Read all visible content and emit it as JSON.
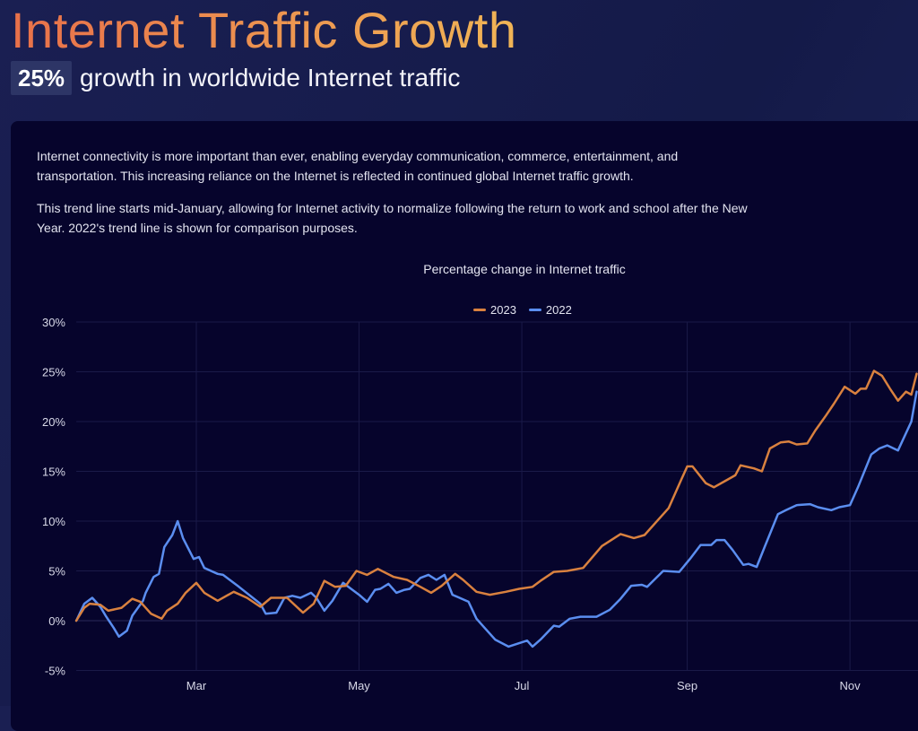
{
  "header": {
    "title": "Internet Traffic Growth",
    "badge": "25%",
    "subtitle": "growth in worldwide Internet traffic"
  },
  "body": {
    "paragraph1": "Internet connectivity is more important than ever, enabling everyday communication, commerce, entertainment, and transportation. This increasing reliance on the Internet is reflected in continued global Internet traffic growth.",
    "paragraph2": "This trend line starts mid-January, allowing for Internet activity to normalize following the return to work and school after the New Year. 2022's trend line is shown for comparison purposes."
  },
  "colors": {
    "2023": "#d9813f",
    "2022": "#5b8ef0",
    "title_start": "#e8704a",
    "title_end": "#f0b556"
  },
  "chart_data": {
    "type": "line",
    "title": "Percentage change in Internet traffic",
    "legend_position": "top-center",
    "grid": true,
    "xlabel": "",
    "ylabel": "",
    "ylim": [
      -5,
      30
    ],
    "y_ticks": [
      "-5%",
      "0%",
      "5%",
      "10%",
      "15%",
      "20%",
      "25%",
      "30%"
    ],
    "y_tick_values": [
      -5,
      0,
      5,
      10,
      15,
      20,
      25,
      30
    ],
    "x_ticks": [
      "Mar",
      "May",
      "Jul",
      "Sep",
      "Nov"
    ],
    "xlim": [
      "Jan 15",
      "Nov 26"
    ],
    "series": [
      {
        "name": "2023",
        "color": "#d9813f",
        "points": [
          [
            "Jan 15",
            0
          ],
          [
            "Jan 18",
            1.3
          ],
          [
            "Jan 20",
            1.7
          ],
          [
            "Jan 24",
            1.6
          ],
          [
            "Jan 27",
            1.0
          ],
          [
            "Feb 1",
            1.3
          ],
          [
            "Feb 5",
            2.2
          ],
          [
            "Feb 8",
            1.9
          ],
          [
            "Feb 12",
            0.7
          ],
          [
            "Feb 16",
            0.2
          ],
          [
            "Feb 18",
            1.0
          ],
          [
            "Feb 22",
            1.7
          ],
          [
            "Feb 25",
            2.8
          ],
          [
            "Mar 1",
            3.8
          ],
          [
            "Mar 4",
            2.8
          ],
          [
            "Mar 9",
            2.0
          ],
          [
            "Mar 15",
            2.9
          ],
          [
            "Mar 20",
            2.3
          ],
          [
            "Mar 25",
            1.4
          ],
          [
            "Mar 29",
            2.3
          ],
          [
            "Apr 4",
            2.3
          ],
          [
            "Apr 10",
            0.8
          ],
          [
            "Apr 14",
            1.7
          ],
          [
            "Apr 18",
            4.0
          ],
          [
            "Apr 22",
            3.4
          ],
          [
            "Apr 26",
            3.5
          ],
          [
            "Apr 30",
            5.0
          ],
          [
            "May 4",
            4.6
          ],
          [
            "May 8",
            5.2
          ],
          [
            "May 14",
            4.4
          ],
          [
            "May 19",
            4.1
          ],
          [
            "May 24",
            3.4
          ],
          [
            "May 28",
            2.8
          ],
          [
            "Jun 1",
            3.5
          ],
          [
            "Jun 6",
            4.7
          ],
          [
            "Jun 9",
            4.1
          ],
          [
            "Jun 14",
            2.9
          ],
          [
            "Jun 19",
            2.6
          ],
          [
            "Jun 25",
            2.9
          ],
          [
            "Jun 30",
            3.2
          ],
          [
            "Jul 5",
            3.4
          ],
          [
            "Jul 8",
            4.0
          ],
          [
            "Jul 13",
            4.9
          ],
          [
            "Jul 18",
            5.0
          ],
          [
            "Jul 24",
            5.3
          ],
          [
            "Jul 31",
            7.5
          ],
          [
            "Aug 7",
            8.7
          ],
          [
            "Aug 12",
            8.3
          ],
          [
            "Aug 16",
            8.6
          ],
          [
            "Aug 21",
            10.1
          ],
          [
            "Aug 25",
            11.3
          ],
          [
            "Aug 30",
            14.3
          ],
          [
            "Sep 1",
            15.5
          ],
          [
            "Sep 3",
            15.5
          ],
          [
            "Sep 8",
            13.8
          ],
          [
            "Sep 11",
            13.4
          ],
          [
            "Sep 15",
            14.0
          ],
          [
            "Sep 19",
            14.6
          ],
          [
            "Sep 21",
            15.6
          ],
          [
            "Sep 26",
            15.3
          ],
          [
            "Sep 29",
            15.0
          ],
          [
            "Oct 2",
            17.3
          ],
          [
            "Oct 6",
            17.9
          ],
          [
            "Oct 9",
            18.0
          ],
          [
            "Oct 12",
            17.7
          ],
          [
            "Oct 16",
            17.8
          ],
          [
            "Oct 19",
            19.1
          ],
          [
            "Oct 23",
            20.6
          ],
          [
            "Oct 26",
            21.8
          ],
          [
            "Oct 30",
            23.5
          ],
          [
            "Nov 3",
            22.8
          ],
          [
            "Nov 5",
            23.3
          ],
          [
            "Nov 7",
            23.3
          ],
          [
            "Nov 10",
            25.1
          ],
          [
            "Nov 13",
            24.6
          ],
          [
            "Nov 16",
            23.3
          ],
          [
            "Nov 19",
            22.1
          ],
          [
            "Nov 22",
            23.0
          ],
          [
            "Nov 24",
            22.7
          ],
          [
            "Nov 26",
            24.8
          ]
        ]
      },
      {
        "name": "2022",
        "color": "#5b8ef0",
        "points": [
          [
            "Jan 15",
            0
          ],
          [
            "Jan 18",
            1.7
          ],
          [
            "Jan 21",
            2.3
          ],
          [
            "Jan 24",
            1.4
          ],
          [
            "Jan 26",
            0.5
          ],
          [
            "Jan 29",
            -0.7
          ],
          [
            "Jan 31",
            -1.6
          ],
          [
            "Feb 3",
            -1.0
          ],
          [
            "Feb 5",
            0.5
          ],
          [
            "Feb 9",
            2.0
          ],
          [
            "Feb 10",
            2.8
          ],
          [
            "Feb 13",
            4.4
          ],
          [
            "Feb 15",
            4.7
          ],
          [
            "Feb 17",
            7.4
          ],
          [
            "Feb 20",
            8.6
          ],
          [
            "Feb 22",
            10.0
          ],
          [
            "Feb 24",
            8.3
          ],
          [
            "Feb 28",
            6.2
          ],
          [
            "Mar 2",
            6.4
          ],
          [
            "Mar 4",
            5.3
          ],
          [
            "Mar 9",
            4.7
          ],
          [
            "Mar 11",
            4.6
          ],
          [
            "Mar 17",
            3.4
          ],
          [
            "Mar 25",
            1.7
          ],
          [
            "Mar 27",
            0.7
          ],
          [
            "Mar 31",
            0.8
          ],
          [
            "Apr 3",
            2.3
          ],
          [
            "Apr 6",
            2.5
          ],
          [
            "Apr 9",
            2.3
          ],
          [
            "Apr 13",
            2.8
          ],
          [
            "Apr 15",
            2.3
          ],
          [
            "Apr 18",
            1.0
          ],
          [
            "Apr 21",
            2.0
          ],
          [
            "Apr 25",
            3.8
          ],
          [
            "Apr 28",
            3.2
          ],
          [
            "May 1",
            2.6
          ],
          [
            "May 4",
            1.9
          ],
          [
            "May 7",
            3.1
          ],
          [
            "May 9",
            3.2
          ],
          [
            "May 12",
            3.7
          ],
          [
            "May 15",
            2.8
          ],
          [
            "May 18",
            3.1
          ],
          [
            "May 20",
            3.2
          ],
          [
            "May 24",
            4.3
          ],
          [
            "May 27",
            4.6
          ],
          [
            "May 30",
            4.1
          ],
          [
            "Jun 2",
            4.6
          ],
          [
            "Jun 5",
            2.6
          ],
          [
            "Jun 11",
            1.9
          ],
          [
            "Jun 14",
            0.2
          ],
          [
            "Jun 17",
            -0.7
          ],
          [
            "Jun 21",
            -1.9
          ],
          [
            "Jun 26",
            -2.6
          ],
          [
            "Jul 3",
            -2.0
          ],
          [
            "Jul 5",
            -2.6
          ],
          [
            "Jul 8",
            -1.9
          ],
          [
            "Jul 13",
            -0.5
          ],
          [
            "Jul 15",
            -0.6
          ],
          [
            "Jul 19",
            0.2
          ],
          [
            "Jul 23",
            0.4
          ],
          [
            "Jul 29",
            0.4
          ],
          [
            "Aug 3",
            1.1
          ],
          [
            "Aug 7",
            2.2
          ],
          [
            "Aug 11",
            3.5
          ],
          [
            "Aug 15",
            3.6
          ],
          [
            "Aug 17",
            3.4
          ],
          [
            "Aug 23",
            5.0
          ],
          [
            "Aug 29",
            4.9
          ],
          [
            "Sep 2",
            6.2
          ],
          [
            "Sep 6",
            7.6
          ],
          [
            "Sep 10",
            7.6
          ],
          [
            "Sep 12",
            8.1
          ],
          [
            "Sep 15",
            8.1
          ],
          [
            "Sep 18",
            7.1
          ],
          [
            "Sep 22",
            5.6
          ],
          [
            "Sep 24",
            5.7
          ],
          [
            "Sep 27",
            5.4
          ],
          [
            "Sep 30",
            7.4
          ],
          [
            "Oct 5",
            10.7
          ],
          [
            "Oct 8",
            11.1
          ],
          [
            "Oct 12",
            11.6
          ],
          [
            "Oct 17",
            11.7
          ],
          [
            "Oct 20",
            11.4
          ],
          [
            "Oct 25",
            11.1
          ],
          [
            "Oct 28",
            11.4
          ],
          [
            "Nov 1",
            11.6
          ],
          [
            "Nov 4",
            13.4
          ],
          [
            "Nov 9",
            16.7
          ],
          [
            "Nov 12",
            17.3
          ],
          [
            "Nov 15",
            17.6
          ],
          [
            "Nov 19",
            17.1
          ],
          [
            "Nov 24",
            20.0
          ],
          [
            "Nov 26",
            23.0
          ]
        ]
      }
    ]
  }
}
